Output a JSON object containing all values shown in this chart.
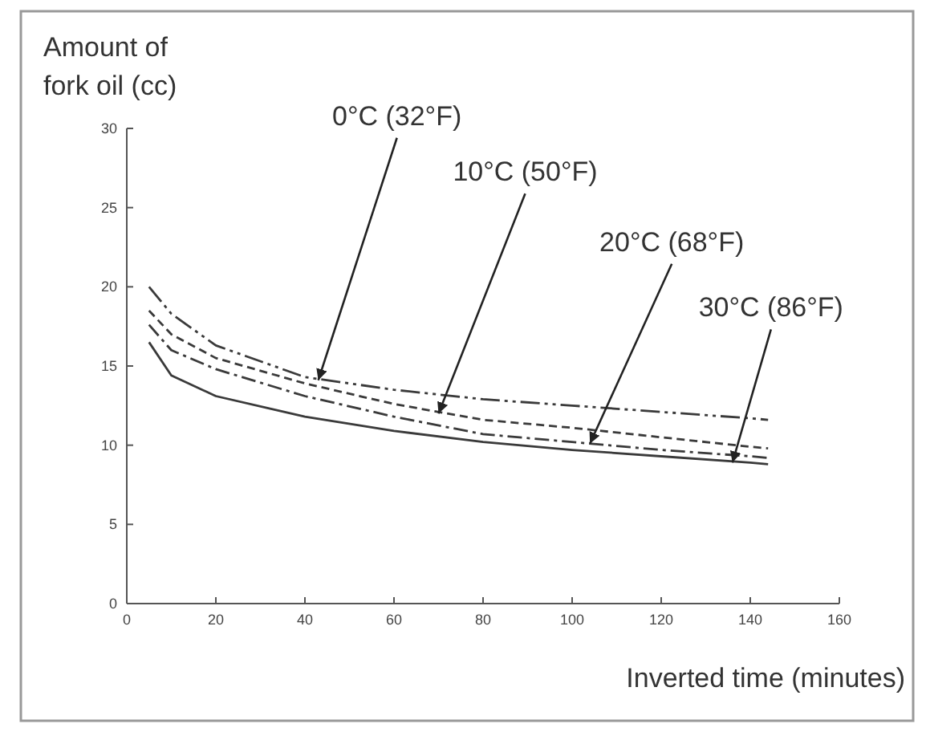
{
  "chart_data": {
    "type": "line",
    "xlabel": "Inverted time (minutes)",
    "ylabel": "Amount of\nfork oil (cc)",
    "x": [
      5,
      10,
      20,
      40,
      60,
      80,
      100,
      120,
      140,
      144
    ],
    "series": [
      {
        "color": "#3a3a3a",
        "line_style": "dashdotdot",
        "values": [
          20,
          18.3,
          16.3,
          14.3,
          13.5,
          12.9,
          12.5,
          12.1,
          11.7,
          11.6
        ]
      },
      {
        "color": "#3a3a3a",
        "line_style": "dashed",
        "values": [
          18.5,
          17,
          15.5,
          13.9,
          12.6,
          11.6,
          11.1,
          10.5,
          9.9,
          9.8
        ]
      },
      {
        "color": "#3a3a3a",
        "line_style": "dashdot",
        "values": [
          17.6,
          16,
          14.8,
          13.1,
          11.8,
          10.7,
          10.2,
          9.7,
          9.3,
          9.2
        ]
      },
      {
        "color": "#3a3a3a",
        "line_style": "solid",
        "values": [
          16.5,
          14.4,
          13.1,
          11.8,
          10.9,
          10.2,
          9.7,
          9.3,
          8.9,
          8.8
        ]
      }
    ],
    "annotations": [
      {
        "text": "0°C (32°F)",
        "x": 43,
        "y": 14.1
      },
      {
        "text": "10°C (50°F)",
        "x": 70,
        "y": 12
      },
      {
        "text": "20°C (68°F)",
        "x": 104,
        "y": 10.1
      },
      {
        "text": "30°C (86°F)",
        "x": 136,
        "y": 8.9
      }
    ],
    "xlim": [
      0,
      160
    ],
    "xticks": [
      0,
      20,
      40,
      60,
      80,
      100,
      120,
      140,
      160
    ],
    "ylim": [
      0,
      30
    ],
    "yticks": [
      0,
      5,
      10,
      15,
      20,
      25,
      30
    ],
    "grid": false,
    "marker": "none"
  }
}
